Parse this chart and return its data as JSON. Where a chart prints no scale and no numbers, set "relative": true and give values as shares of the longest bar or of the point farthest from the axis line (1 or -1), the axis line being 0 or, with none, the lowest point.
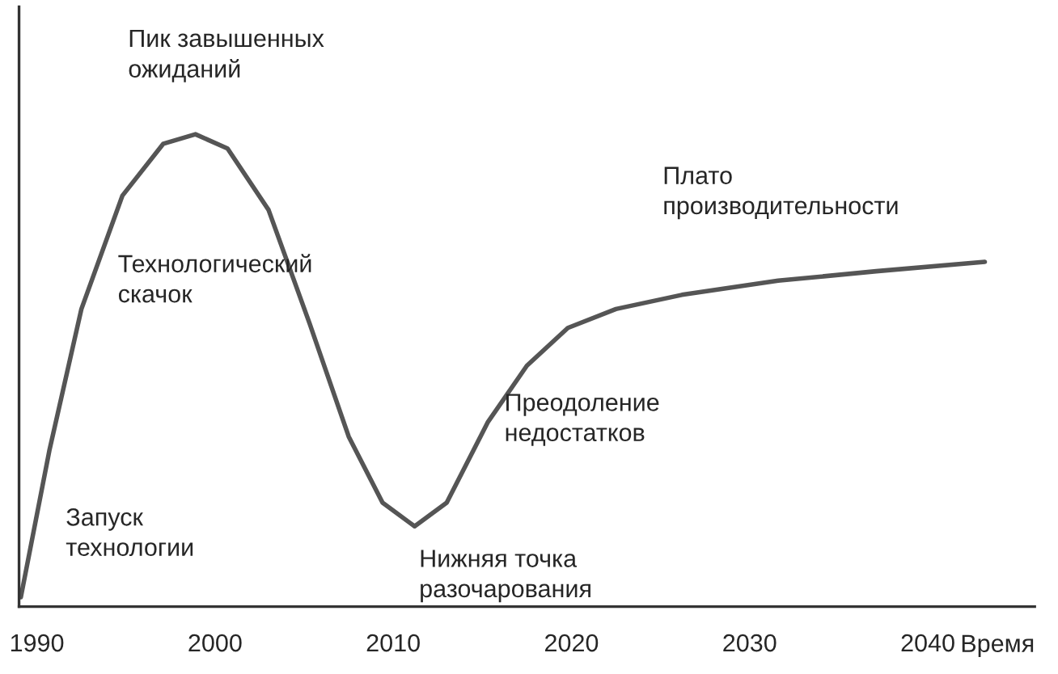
{
  "chart_data": {
    "type": "line",
    "relative": true,
    "xlabel": "Время",
    "xlim": [
      1989,
      2046
    ],
    "xticks": [
      1990,
      2000,
      2010,
      2020,
      2030,
      2040
    ],
    "grid": false,
    "marker": "none",
    "line_style": "solid",
    "x": [
      1989.1,
      1990.7,
      1992.5,
      1994.8,
      1997.1,
      1998.9,
      2000.7,
      2003.0,
      2005.3,
      2007.5,
      2009.4,
      2011.2,
      2013.0,
      2015.3,
      2017.5,
      2019.8,
      2022.5,
      2026.2,
      2031.6,
      2037.1,
      2043.2
    ],
    "series": [
      {
        "color": "#555555",
        "values": [
          0.02,
          0.33,
          0.63,
          0.87,
          0.98,
          1.0,
          0.97,
          0.84,
          0.6,
          0.36,
          0.22,
          0.17,
          0.22,
          0.39,
          0.51,
          0.59,
          0.63,
          0.66,
          0.69,
          0.71,
          0.73
        ]
      }
    ],
    "annotations": [
      {
        "text": "Пик завышенных\nожиданий",
        "x": 1998.9,
        "y": 1.0
      },
      {
        "text": "Технологический\nскачок",
        "x": 2004.0,
        "y": 0.68
      },
      {
        "text": "Запуск\nтехнологии",
        "x": 1989.1,
        "y": 0.02
      },
      {
        "text": "Нижняя точка\nразочарования",
        "x": 2011.2,
        "y": 0.17
      },
      {
        "text": "Преодоление\nнедостатков",
        "x": 2017.5,
        "y": 0.51
      },
      {
        "text": "Плато\nпроизводительности",
        "x": 2037.1,
        "y": 0.71
      }
    ]
  }
}
